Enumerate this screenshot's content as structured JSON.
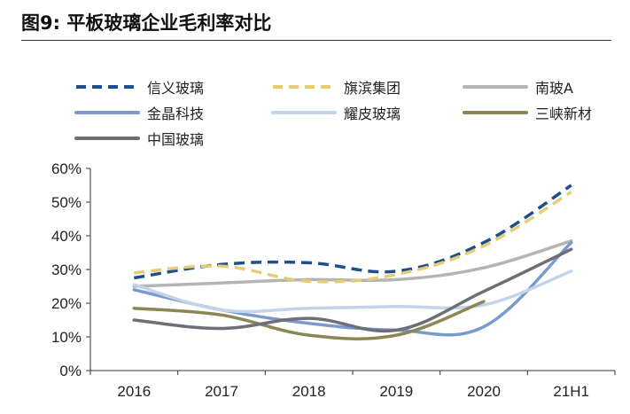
{
  "header": {
    "title": "图9:   平板玻璃企业毛利率对比"
  },
  "chart_data": {
    "type": "line",
    "title": "图9:   平板玻璃企业毛利率对比",
    "categories": [
      "2016",
      "2017",
      "2018",
      "2019",
      "2020",
      "21H1"
    ],
    "ylim": [
      0,
      60
    ],
    "yticks": [
      0,
      10,
      20,
      30,
      40,
      50,
      60
    ],
    "ytick_labels": [
      "0%",
      "10%",
      "20%",
      "30%",
      "40%",
      "50%",
      "60%"
    ],
    "xlabel": "",
    "ylabel": "",
    "grid": false,
    "legend_position": "top",
    "series": [
      {
        "name": "信义玻璃",
        "values": [
          27.5,
          31.5,
          32,
          29.5,
          38,
          55
        ],
        "color": "#1F4E8C",
        "dash": "dashed"
      },
      {
        "name": "旗滨集团",
        "values": [
          29,
          31,
          26.5,
          28.5,
          37,
          53
        ],
        "color": "#E6CD73",
        "dash": "dashed"
      },
      {
        "name": "南玻A",
        "values": [
          25,
          26,
          27,
          27,
          30.5,
          38.5
        ],
        "color": "#B4B4B4",
        "dash": "solid"
      },
      {
        "name": "金晶科技",
        "values": [
          24,
          18,
          14,
          12,
          13,
          38
        ],
        "color": "#7A9ACF",
        "dash": "solid"
      },
      {
        "name": "耀皮玻璃",
        "values": [
          25.5,
          18,
          18.5,
          19,
          19.5,
          29.5
        ],
        "color": "#C3D4EA",
        "dash": "solid"
      },
      {
        "name": "三峡新材",
        "values": [
          18.5,
          16.5,
          10.5,
          10.5,
          20.5,
          null
        ],
        "color": "#8C8655",
        "dash": "solid"
      },
      {
        "name": "中国玻璃",
        "values": [
          15,
          12.5,
          15.5,
          12,
          23.5,
          36
        ],
        "color": "#6E6E78",
        "dash": "solid"
      }
    ]
  }
}
